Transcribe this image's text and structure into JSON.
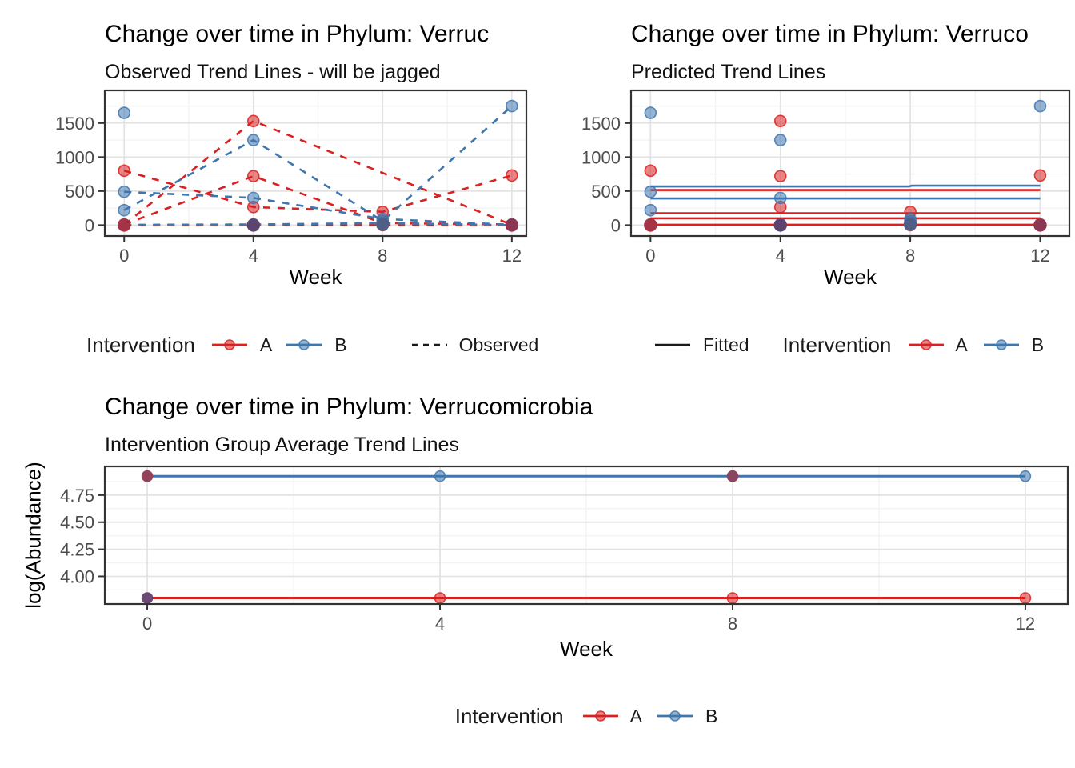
{
  "palette": {
    "A": "#D92121",
    "B": "#3E77AF",
    "linetype_key": "#1A1A1A",
    "axis_text": "#4D4D4D",
    "grid_major": "#E3E3E3",
    "grid_minor": "#F3F3F3",
    "panel_border": "#333333"
  },
  "chart_data": [
    {
      "id": "observed",
      "type": "line",
      "title": "Change over time in Phylum: Verruc",
      "subtitle": "Observed Trend Lines - will be jagged",
      "xlabel": "Week",
      "xlim": [
        -0.6,
        12.45
      ],
      "ylim": [
        -160,
        1980
      ],
      "x_ticks": [
        0,
        4,
        8,
        12
      ],
      "x_tick_labels": [
        "0",
        "4",
        "8",
        "12"
      ],
      "x_minor": [
        2,
        6,
        10
      ],
      "y_ticks": [
        0,
        500,
        1000,
        1500
      ],
      "y_tick_labels": [
        "0",
        "500",
        "1000",
        "1500"
      ],
      "y_minor": [
        250,
        750,
        1250,
        1750
      ],
      "series": [
        {
          "group": "A",
          "linetype": "dashed",
          "x": [
            0,
            4,
            8,
            12
          ],
          "y": [
            800,
            265,
            195,
            730
          ]
        },
        {
          "group": "A",
          "linetype": "dashed",
          "x": [
            0,
            4,
            12
          ],
          "y": [
            5,
            1530,
            5
          ]
        },
        {
          "group": "A",
          "linetype": "dashed",
          "x": [
            0,
            4,
            8,
            12
          ],
          "y": [
            10,
            720,
            30,
            10
          ]
        },
        {
          "group": "A",
          "linetype": "dashed",
          "x": [
            0,
            4,
            8,
            12
          ],
          "y": [
            0,
            5,
            0,
            0
          ]
        },
        {
          "group": "B",
          "linetype": "dashed",
          "x": [
            0,
            4,
            8,
            12
          ],
          "y": [
            220,
            1250,
            60,
            1750
          ]
        },
        {
          "group": "B",
          "linetype": "dashed",
          "x": [
            0,
            4,
            8,
            12
          ],
          "y": [
            490,
            400,
            90,
            5
          ]
        },
        {
          "group": "B",
          "x": [
            0
          ],
          "y": [
            1650
          ]
        },
        {
          "group": "B",
          "linetype": "dashed",
          "x": [
            0,
            4,
            8,
            12
          ],
          "y": [
            5,
            10,
            30,
            0
          ]
        }
      ],
      "overlap_points": [
        {
          "x": 0,
          "y": 0,
          "color": "#A63246"
        },
        {
          "x": 4,
          "y": 0,
          "color": "#5C4470"
        },
        {
          "x": 8,
          "y": 10,
          "color": "#4E5E85"
        },
        {
          "x": 12,
          "y": 0,
          "color": "#8C3653"
        }
      ],
      "legend": {
        "title": "Intervention",
        "items": [
          "A",
          "B"
        ],
        "linetype_item": "Observed"
      }
    },
    {
      "id": "predicted",
      "type": "line",
      "title": "Change over time in Phylum: Verruco",
      "subtitle": "Predicted Trend Lines",
      "xlabel": "Week",
      "xlim": [
        -0.6,
        12.9
      ],
      "ylim": [
        -160,
        1980
      ],
      "x_ticks": [
        0,
        4,
        8,
        12
      ],
      "x_tick_labels": [
        "0",
        "4",
        "8",
        "12"
      ],
      "x_minor": [
        2,
        6,
        10
      ],
      "y_ticks": [
        0,
        500,
        1000,
        1500
      ],
      "y_tick_labels": [
        "0",
        "500",
        "1000",
        "1500"
      ],
      "y_minor": [
        250,
        750,
        1250,
        1750
      ],
      "series": [
        {
          "group": "A",
          "line": false,
          "x": [
            0,
            4,
            8,
            12
          ],
          "y": [
            800,
            265,
            195,
            730
          ]
        },
        {
          "group": "A",
          "line": false,
          "x": [
            0,
            4,
            12
          ],
          "y": [
            5,
            1530,
            5
          ]
        },
        {
          "group": "A",
          "line": false,
          "x": [
            0,
            4,
            8,
            12
          ],
          "y": [
            10,
            720,
            30,
            10
          ]
        },
        {
          "group": "A",
          "line": false,
          "x": [
            0,
            4,
            8,
            12
          ],
          "y": [
            0,
            5,
            0,
            0
          ]
        },
        {
          "group": "B",
          "line": false,
          "x": [
            0,
            4,
            8,
            12
          ],
          "y": [
            220,
            1250,
            60,
            1750
          ]
        },
        {
          "group": "B",
          "line": false,
          "x": [
            0,
            4,
            8,
            12
          ],
          "y": [
            490,
            400,
            90,
            5
          ]
        },
        {
          "group": "B",
          "line": false,
          "x": [
            0
          ],
          "y": [
            1650
          ]
        },
        {
          "group": "B",
          "line": false,
          "x": [
            0,
            4,
            8,
            12
          ],
          "y": [
            5,
            10,
            30,
            0
          ]
        },
        {
          "group": "B",
          "points": false,
          "x": [
            0,
            7.95,
            8.05,
            12
          ],
          "y": [
            568,
            568,
            580,
            580
          ]
        },
        {
          "group": "B",
          "points": false,
          "x": [
            0,
            12
          ],
          "y": [
            392,
            392
          ]
        },
        {
          "group": "A",
          "points": false,
          "x": [
            0,
            12
          ],
          "y": [
            515,
            515
          ]
        },
        {
          "group": "A",
          "points": false,
          "x": [
            0,
            12
          ],
          "y": [
            175,
            175
          ]
        },
        {
          "group": "A",
          "points": false,
          "x": [
            0,
            12
          ],
          "y": [
            100,
            100
          ]
        },
        {
          "group": "A",
          "points": false,
          "x": [
            0,
            12
          ],
          "y": [
            5,
            5
          ]
        }
      ],
      "overlap_points": [
        {
          "x": 0,
          "y": 0,
          "color": "#A63246"
        },
        {
          "x": 4,
          "y": 0,
          "color": "#5C4470"
        },
        {
          "x": 8,
          "y": 10,
          "color": "#4E5E85"
        },
        {
          "x": 12,
          "y": 0,
          "color": "#8C3653"
        }
      ],
      "legend": {
        "title": "Intervention",
        "items": [
          "A",
          "B"
        ],
        "linetype_item": "Fitted"
      }
    },
    {
      "id": "average",
      "type": "line",
      "title": "Change over time in Phylum: Verrucomicrobia",
      "subtitle": "Intervention Group Average Trend Lines",
      "xlabel": "Week",
      "ylabel": "log(Abundance)",
      "xlim": [
        -0.58,
        12.58
      ],
      "ylim": [
        3.745,
        5.015
      ],
      "x_ticks": [
        0,
        4,
        8,
        12
      ],
      "x_tick_labels": [
        "0",
        "4",
        "8",
        "12"
      ],
      "x_minor": [
        2,
        6,
        10
      ],
      "y_ticks": [
        4.0,
        4.25,
        4.5,
        4.75
      ],
      "y_tick_labels": [
        "4.00",
        "4.25",
        "4.50",
        "4.75"
      ],
      "y_minor": [
        3.875,
        4.125,
        4.375,
        4.625,
        4.875
      ],
      "series": [
        {
          "group": "B",
          "width": 3,
          "r": 6.5,
          "x": [
            0,
            4,
            8,
            12
          ],
          "y": [
            4.925,
            4.925,
            4.925,
            4.925
          ],
          "point_colors": [
            "#94425A",
            "",
            "#8A4560",
            ""
          ]
        },
        {
          "group": "A",
          "width": 3,
          "r": 6.5,
          "x": [
            0,
            4,
            8,
            12
          ],
          "y": [
            3.8,
            3.8,
            3.8,
            3.8
          ],
          "point_colors": [
            "#6B4875",
            "",
            "",
            ""
          ]
        }
      ],
      "legend": {
        "title": "Intervention",
        "items": [
          "A",
          "B"
        ]
      }
    }
  ]
}
